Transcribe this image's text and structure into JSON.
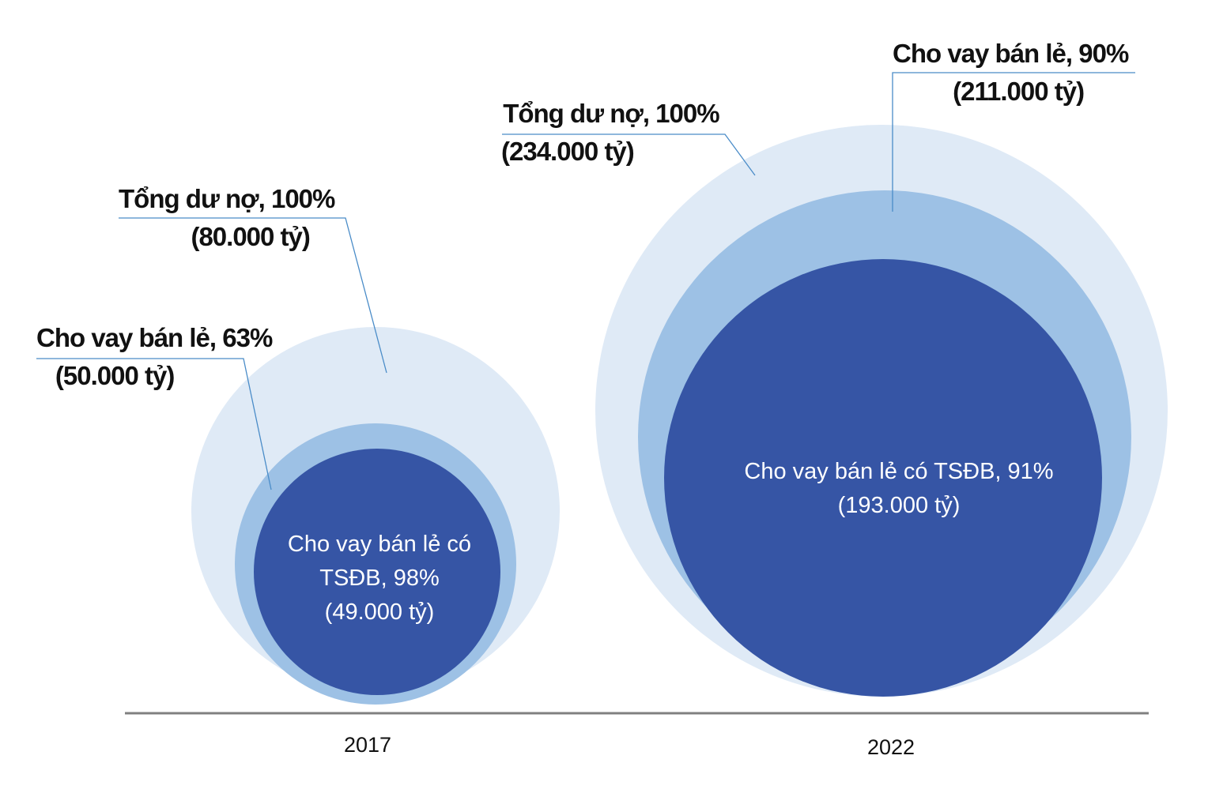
{
  "chart_data": {
    "type": "nested-bubble",
    "categories": [
      "2017",
      "2022"
    ],
    "colors": {
      "total": "#dfeaf6",
      "retail": "#9dc1e5",
      "secured": "#3655a5",
      "leader": "#4a8cc8",
      "axis": "#808080"
    },
    "groups": [
      {
        "year": "2017",
        "total": {
          "label": "Tổng dư nợ, 100%",
          "value_label": "(80.000 tỷ)",
          "value": 80000,
          "percent": 100
        },
        "retail": {
          "label": "Cho vay bán lẻ, 63%",
          "value_label": "(50.000 tỷ)",
          "value": 50000,
          "percent": 63
        },
        "secured": {
          "label_line1": "Cho vay bán lẻ có",
          "label_line2": "TSĐB, 98%",
          "value_label": "(49.000 tỷ)",
          "value": 49000,
          "percent": 98
        }
      },
      {
        "year": "2022",
        "total": {
          "label": "Tổng dư nợ, 100%",
          "value_label": "(234.000 tỷ)",
          "value": 234000,
          "percent": 100
        },
        "retail": {
          "label": "Cho vay bán lẻ, 90%",
          "value_label": "(211.000 tỷ)",
          "value": 211000,
          "percent": 90
        },
        "secured": {
          "label_line1": "Cho vay bán lẻ có TSĐB, 91%",
          "value_label": "(193.000 tỷ)",
          "value": 193000,
          "percent": 91
        }
      }
    ]
  }
}
